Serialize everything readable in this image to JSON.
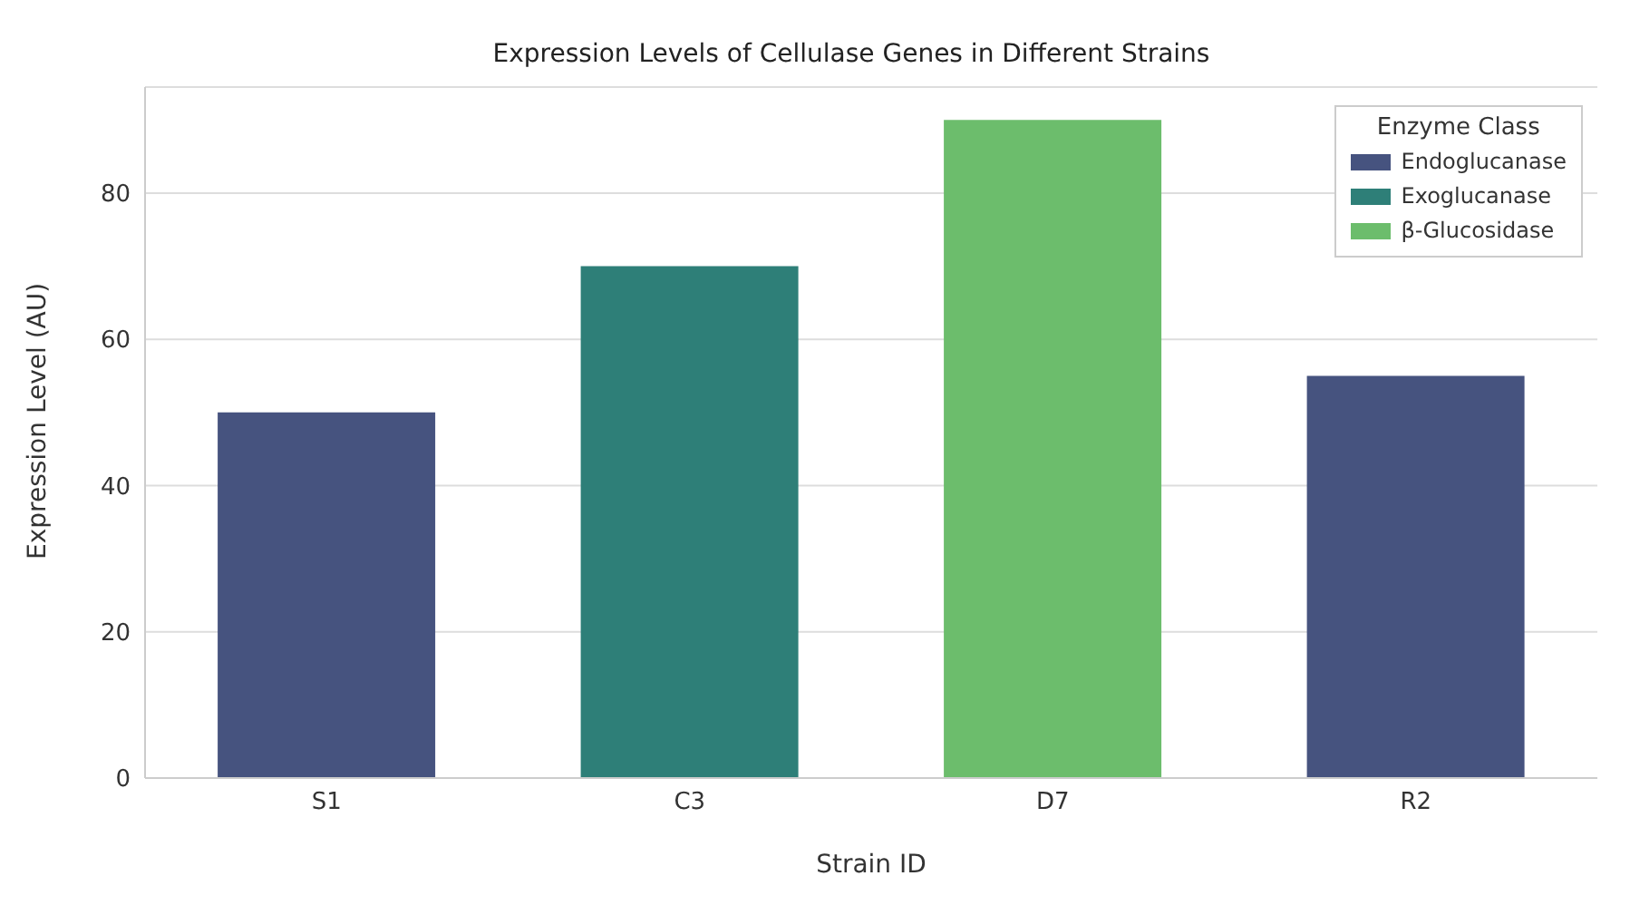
{
  "chart_data": {
    "type": "bar",
    "title": "Expression Levels of Cellulase Genes in Different Strains",
    "xlabel": "Strain ID",
    "ylabel": "Expression Level (AU)",
    "legend_title": "Enzyme Class",
    "categories": [
      "S1",
      "C3",
      "D7",
      "R2"
    ],
    "series": [
      {
        "name": "Endoglucanase",
        "color": "#46537f",
        "values": [
          50,
          null,
          null,
          55
        ]
      },
      {
        "name": "Exoglucanase",
        "color": "#2e7f78",
        "values": [
          null,
          70,
          null,
          null
        ]
      },
      {
        "name": "β-Glucosidase",
        "color": "#6cbd6c",
        "values": [
          null,
          null,
          90,
          null
        ]
      }
    ],
    "stacked": true,
    "ylim": [
      0,
      94.5
    ],
    "yticks": [
      0,
      20,
      40,
      60,
      80
    ],
    "grid": "y",
    "legend": "top right"
  }
}
